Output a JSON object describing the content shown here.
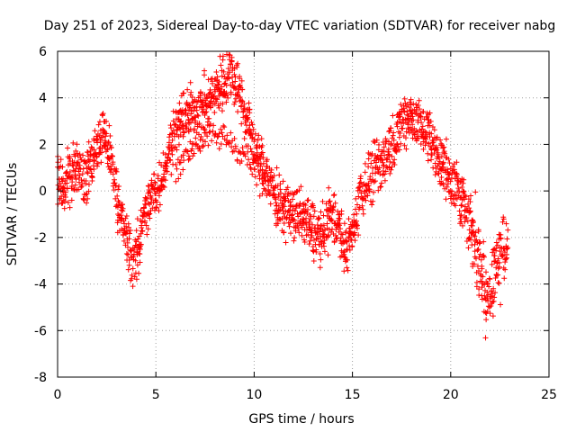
{
  "chart_data": {
    "type": "scatter",
    "title": "Day 251 of 2023, Sidereal Day-to-day VTEC variation (SDTVAR) for receiver nabg",
    "xlabel": "GPS time / hours",
    "ylabel": "SDTVAR / TECUs",
    "xlim": [
      0,
      25
    ],
    "ylim": [
      -8,
      6
    ],
    "xticks": [
      0,
      5,
      10,
      15,
      20,
      25
    ],
    "yticks": [
      -8,
      -6,
      -4,
      -2,
      0,
      2,
      4,
      6
    ],
    "xtick_labels": [
      "0",
      "5",
      "10",
      "15",
      "20",
      "25"
    ],
    "ytick_labels": [
      "-8",
      "-6",
      "-4",
      "-2",
      "0",
      "2",
      "4",
      "6"
    ],
    "grid": true,
    "marker": "+",
    "color": "#ff0000",
    "series": [
      {
        "name": "SDTVAR",
        "trend_x": [
          0,
          0.3,
          0.6,
          1.0,
          1.3,
          1.6,
          2.0,
          2.3,
          2.6,
          2.9,
          3.2,
          3.5,
          3.8,
          4.1,
          4.4,
          4.7,
          5.0,
          5.3,
          5.6,
          5.9,
          6.2,
          6.5,
          6.8,
          7.1,
          7.4,
          7.7,
          8.0,
          8.3,
          8.6,
          8.9,
          9.2,
          9.5,
          9.8,
          10.1,
          10.4,
          10.7,
          11.0,
          11.3,
          11.6,
          11.9,
          12.2,
          12.5,
          12.8,
          13.1,
          13.4,
          13.7,
          14.0,
          14.3,
          14.6,
          14.9,
          15.2,
          15.5,
          15.8,
          16.1,
          16.4,
          16.7,
          17.0,
          17.3,
          17.6,
          17.9,
          18.2,
          18.5,
          18.8,
          19.1,
          19.4,
          19.7,
          20.0,
          20.3,
          20.6,
          20.9,
          21.2,
          21.5,
          21.8,
          22.1,
          22.4,
          22.7,
          22.9
        ],
        "trend_y": [
          0.5,
          0.0,
          0.8,
          1.2,
          0.5,
          1.0,
          1.8,
          2.5,
          1.8,
          0.5,
          -1.0,
          -2.0,
          -3.0,
          -2.5,
          -1.0,
          -0.5,
          0.0,
          0.5,
          1.5,
          2.5,
          3.0,
          3.2,
          3.3,
          3.5,
          3.6,
          3.8,
          4.2,
          4.6,
          4.8,
          5.0,
          4.5,
          3.5,
          2.5,
          1.5,
          1.0,
          0.5,
          0.0,
          -0.5,
          -0.8,
          -1.0,
          -1.0,
          -1.2,
          -1.5,
          -1.8,
          -2.0,
          -1.5,
          -1.0,
          -1.5,
          -2.5,
          -2.0,
          -1.0,
          0.0,
          0.5,
          0.8,
          1.0,
          1.5,
          2.0,
          2.5,
          3.0,
          3.2,
          3.0,
          2.8,
          2.5,
          2.0,
          1.5,
          1.0,
          0.5,
          0.0,
          -0.5,
          -1.0,
          -2.0,
          -3.0,
          -4.5,
          -4.0,
          -3.0,
          -2.5,
          -2.5
        ],
        "secondary_x": [
          6.0,
          6.5,
          7.0,
          7.5,
          8.0,
          8.5,
          9.0,
          9.5,
          10.0,
          10.5
        ],
        "secondary_y": [
          1.0,
          1.5,
          2.0,
          2.2,
          2.4,
          2.3,
          2.0,
          1.5,
          1.0,
          0.5
        ]
      }
    ]
  }
}
